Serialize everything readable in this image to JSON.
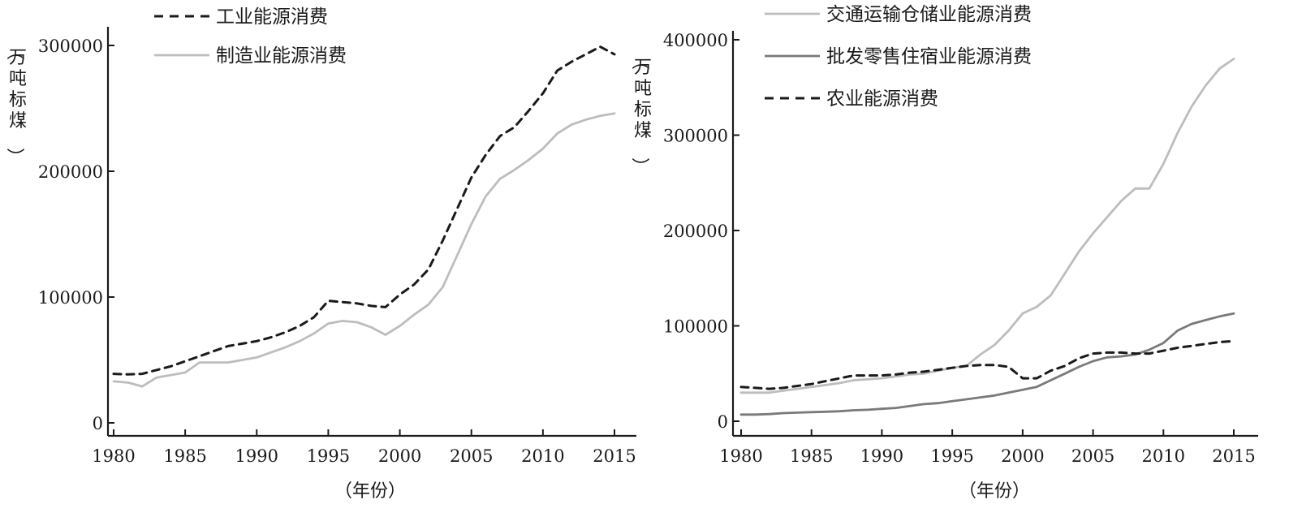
{
  "chart_data": [
    {
      "type": "line",
      "title": "",
      "xlabel": "（年份）",
      "ylabel": "（万吨标煤）",
      "xlim": [
        1980,
        2016
      ],
      "ylim": [
        0,
        310000
      ],
      "xticks": [
        1980,
        1985,
        1990,
        1995,
        2000,
        2005,
        2010,
        2015
      ],
      "yticks": [
        0,
        100000,
        200000,
        300000
      ],
      "grid": false,
      "legend_position": "top-left",
      "series": [
        {
          "name": "工业能源消费",
          "style": "dashed",
          "color": "#1a1a1a",
          "x": [
            1980,
            1981,
            1982,
            1983,
            1984,
            1985,
            1986,
            1987,
            1988,
            1989,
            1990,
            1991,
            1992,
            1993,
            1994,
            1995,
            1996,
            1997,
            1998,
            1999,
            2000,
            2001,
            2002,
            2003,
            2004,
            2005,
            2006,
            2007,
            2008,
            2009,
            2010,
            2011,
            2012,
            2013,
            2014,
            2015
          ],
          "values": [
            39000,
            38500,
            39000,
            42000,
            45000,
            49000,
            53000,
            57000,
            61000,
            63000,
            65000,
            68000,
            72000,
            77000,
            84000,
            97000,
            96000,
            95000,
            93000,
            92000,
            102000,
            110000,
            122000,
            145000,
            170000,
            195000,
            213000,
            228000,
            235000,
            248000,
            262000,
            280000,
            287000,
            293000,
            299000,
            293000
          ]
        },
        {
          "name": "制造业能源消费",
          "style": "solid",
          "color": "#bdbdbd",
          "x": [
            1980,
            1981,
            1982,
            1983,
            1984,
            1985,
            1986,
            1987,
            1988,
            1989,
            1990,
            1991,
            1992,
            1993,
            1994,
            1995,
            1996,
            1997,
            1998,
            1999,
            2000,
            2001,
            2002,
            2003,
            2004,
            2005,
            2006,
            2007,
            2008,
            2009,
            2010,
            2011,
            2012,
            2013,
            2014,
            2015
          ],
          "values": [
            33000,
            32000,
            29000,
            36000,
            38000,
            40000,
            48000,
            48000,
            48000,
            50000,
            52000,
            56000,
            60000,
            65000,
            71000,
            79000,
            81000,
            80000,
            76000,
            70000,
            77000,
            86000,
            94000,
            108000,
            133000,
            158000,
            180000,
            194000,
            201000,
            209000,
            218000,
            230000,
            237000,
            241000,
            244000,
            246000
          ]
        }
      ]
    },
    {
      "type": "line",
      "title": "",
      "xlabel": "（年份）",
      "ylabel": "（万吨标煤）",
      "xlim": [
        1980,
        2016.5
      ],
      "ylim": [
        -8000,
        410000
      ],
      "xticks": [
        1980,
        1985,
        1990,
        1995,
        2000,
        2005,
        2010,
        2015
      ],
      "yticks": [
        0,
        100000,
        200000,
        300000,
        400000
      ],
      "grid": false,
      "legend_position": "top-left",
      "series": [
        {
          "name": "交通运输仓储业能源消费",
          "style": "solid",
          "color": "#bdbdbd",
          "x": [
            1980,
            1981,
            1982,
            1983,
            1984,
            1985,
            1986,
            1987,
            1988,
            1989,
            1990,
            1991,
            1992,
            1993,
            1994,
            1995,
            1996,
            1997,
            1998,
            1999,
            2000,
            2001,
            2002,
            2003,
            2004,
            2005,
            2006,
            2007,
            2008,
            2009,
            2010,
            2011,
            2012,
            2013,
            2014,
            2015
          ],
          "values": [
            30000,
            30000,
            30000,
            32000,
            34000,
            36000,
            38000,
            40000,
            43000,
            44000,
            45000,
            47000,
            49000,
            50000,
            53000,
            56000,
            58000,
            70000,
            80000,
            95000,
            113000,
            120000,
            132000,
            155000,
            178000,
            197000,
            214000,
            231000,
            244000,
            244000,
            270000,
            302000,
            330000,
            352000,
            370000,
            380000
          ]
        },
        {
          "name": "批发零售住宿业能源消费",
          "style": "solid",
          "color": "#7a7a7a",
          "x": [
            1980,
            1981,
            1982,
            1983,
            1984,
            1985,
            1986,
            1987,
            1988,
            1989,
            1990,
            1991,
            1992,
            1993,
            1994,
            1995,
            1996,
            1997,
            1998,
            1999,
            2000,
            2001,
            2002,
            2003,
            2004,
            2005,
            2006,
            2007,
            2008,
            2009,
            2010,
            2011,
            2012,
            2013,
            2014,
            2015
          ],
          "values": [
            7000,
            7000,
            7500,
            8500,
            9000,
            9500,
            10000,
            10500,
            11500,
            12000,
            13000,
            14000,
            16000,
            18000,
            19000,
            21000,
            23000,
            25000,
            27000,
            30000,
            33000,
            36000,
            43000,
            50000,
            57000,
            63000,
            67000,
            68000,
            70000,
            75000,
            82000,
            95000,
            102000,
            106000,
            110000,
            113000
          ]
        },
        {
          "name": "农业能源消费",
          "style": "dashed",
          "color": "#1a1a1a",
          "x": [
            1980,
            1981,
            1982,
            1983,
            1984,
            1985,
            1986,
            1987,
            1988,
            1989,
            1990,
            1991,
            1992,
            1993,
            1994,
            1995,
            1996,
            1997,
            1998,
            1999,
            2000,
            2001,
            2002,
            2003,
            2004,
            2005,
            2006,
            2007,
            2008,
            2009,
            2010,
            2011,
            2012,
            2013,
            2014,
            2015
          ],
          "values": [
            36000,
            35000,
            34000,
            35000,
            37000,
            39000,
            42000,
            45000,
            48000,
            48000,
            48000,
            49000,
            51000,
            52000,
            54000,
            56000,
            58000,
            59000,
            59000,
            57000,
            45000,
            45000,
            53000,
            58000,
            66000,
            71000,
            72000,
            72000,
            71000,
            71000,
            74000,
            77000,
            79000,
            81000,
            83000,
            84000
          ]
        }
      ]
    }
  ]
}
